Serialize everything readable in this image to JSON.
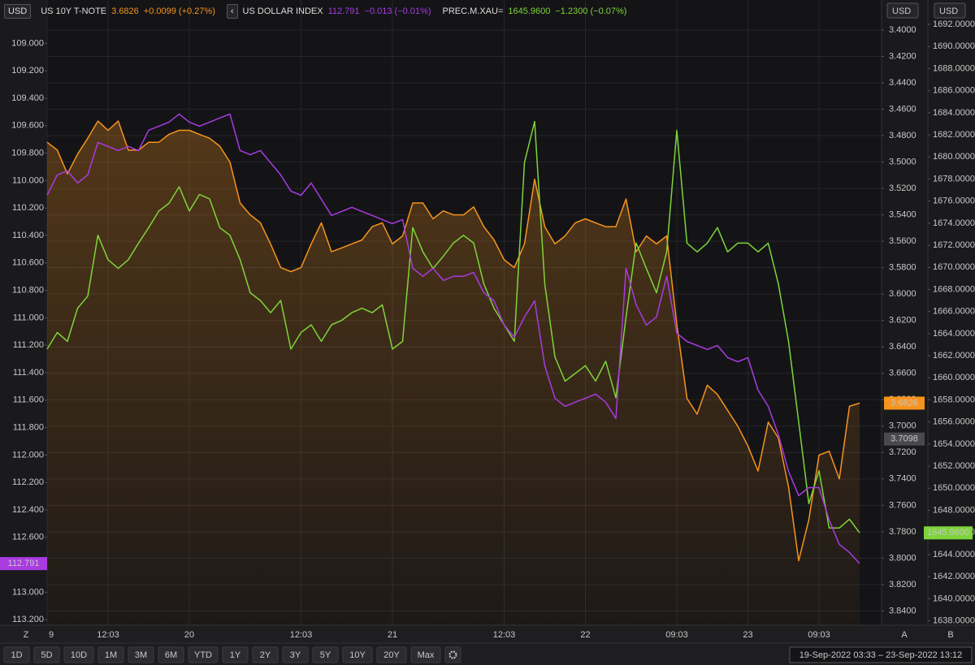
{
  "chart_data": {
    "type": "line",
    "x_labels_note": null,
    "categories": [
      "9",
      null,
      null,
      null,
      null,
      null,
      "12:03",
      null,
      null,
      null,
      null,
      null,
      null,
      null,
      "20",
      null,
      null,
      null,
      null,
      null,
      null,
      null,
      null,
      null,
      null,
      "12:03",
      null,
      null,
      null,
      null,
      null,
      null,
      null,
      null,
      "21",
      null,
      null,
      null,
      null,
      null,
      null,
      null,
      null,
      null,
      null,
      "12:03",
      null,
      null,
      null,
      null,
      null,
      null,
      null,
      "22",
      null,
      null,
      null,
      null,
      null,
      null,
      null,
      null,
      "09:03",
      null,
      null,
      null,
      null,
      null,
      null,
      "23",
      null,
      null,
      null,
      null,
      null,
      null,
      "09:03",
      null,
      null,
      null,
      null
    ],
    "ylim": [
      108.85,
      113.24
    ],
    "y_inverted": true,
    "y_currency": "USD",
    "yticks": [
      {
        "value": 109,
        "label": "109.000"
      },
      {
        "value": 109.2,
        "label": "109.200"
      },
      {
        "value": 109.4,
        "label": "109.400"
      },
      {
        "value": 109.6,
        "label": "109.600"
      },
      {
        "value": 109.8,
        "label": "109.800"
      },
      {
        "value": 110,
        "label": "110.000"
      },
      {
        "value": 110.2,
        "label": "110.200"
      },
      {
        "value": 110.4,
        "label": "110.400"
      },
      {
        "value": 110.6,
        "label": "110.600"
      },
      {
        "value": 110.8,
        "label": "110.800"
      },
      {
        "value": 111,
        "label": "111.000"
      },
      {
        "value": 111.2,
        "label": "111.200"
      },
      {
        "value": 111.4,
        "label": "111.400"
      },
      {
        "value": 111.6,
        "label": "111.600"
      },
      {
        "value": 111.8,
        "label": "111.800"
      },
      {
        "value": 112,
        "label": "112.000"
      },
      {
        "value": 112.2,
        "label": "112.200"
      },
      {
        "value": 112.4,
        "label": "112.400"
      },
      {
        "value": 112.6,
        "label": "112.600"
      },
      {
        "value": 112.8,
        "label": "112.800"
      },
      {
        "value": 113,
        "label": "113.000"
      },
      {
        "value": 113.2,
        "label": "113.200"
      }
    ],
    "y2lim": [
      3.3945,
      3.8508
    ],
    "y2_inverted": true,
    "y2_currency": "USD",
    "y2ticks": [
      {
        "value": 3.4,
        "label": "3.4000"
      },
      {
        "value": 3.42,
        "label": "3.4200"
      },
      {
        "value": 3.44,
        "label": "3.4400"
      },
      {
        "value": 3.46,
        "label": "3.4600"
      },
      {
        "value": 3.48,
        "label": "3.4800"
      },
      {
        "value": 3.5,
        "label": "3.5000"
      },
      {
        "value": 3.52,
        "label": "3.5200"
      },
      {
        "value": 3.54,
        "label": "3.5400"
      },
      {
        "value": 3.56,
        "label": "3.5600"
      },
      {
        "value": 3.58,
        "label": "3.5800"
      },
      {
        "value": 3.6,
        "label": "3.6000"
      },
      {
        "value": 3.62,
        "label": "3.6200"
      },
      {
        "value": 3.64,
        "label": "3.6400"
      },
      {
        "value": 3.66,
        "label": "3.6600"
      },
      {
        "value": 3.68,
        "label": "3.6800"
      },
      {
        "value": 3.7,
        "label": "3.7000"
      },
      {
        "value": 3.72,
        "label": "3.7200"
      },
      {
        "value": 3.74,
        "label": "3.7400"
      },
      {
        "value": 3.76,
        "label": "3.7600"
      },
      {
        "value": 3.78,
        "label": "3.7800"
      },
      {
        "value": 3.8,
        "label": "3.8000"
      },
      {
        "value": 3.82,
        "label": "3.8200"
      },
      {
        "value": 3.84,
        "label": "3.8400"
      }
    ],
    "y3lim": [
      1637.6,
      1692.15
    ],
    "y3_currency": "USD",
    "y3ticks": [
      {
        "value": 1638,
        "label": "1638.0000"
      },
      {
        "value": 1640,
        "label": "1640.0000"
      },
      {
        "value": 1642,
        "label": "1642.0000"
      },
      {
        "value": 1644,
        "label": "1644.0000"
      },
      {
        "value": 1646,
        "label": "1646.0000"
      },
      {
        "value": 1648,
        "label": "1648.0000"
      },
      {
        "value": 1650,
        "label": "1650.0000"
      },
      {
        "value": 1652,
        "label": "1652.0000"
      },
      {
        "value": 1654,
        "label": "1654.0000"
      },
      {
        "value": 1656,
        "label": "1656.0000"
      },
      {
        "value": 1658,
        "label": "1658.0000"
      },
      {
        "value": 1660,
        "label": "1660.0000"
      },
      {
        "value": 1662,
        "label": "1662.0000"
      },
      {
        "value": 1664,
        "label": "1664.0000"
      },
      {
        "value": 1666,
        "label": "1666.0000"
      },
      {
        "value": 1668,
        "label": "1668.0000"
      },
      {
        "value": 1670,
        "label": "1670.0000"
      },
      {
        "value": 1672,
        "label": "1672.0000"
      },
      {
        "value": 1674,
        "label": "1674.0000"
      },
      {
        "value": 1676,
        "label": "1676.0000"
      },
      {
        "value": 1678,
        "label": "1678.0000"
      },
      {
        "value": 1680,
        "label": "1680.0000"
      },
      {
        "value": 1682,
        "label": "1682.0000"
      },
      {
        "value": 1684,
        "label": "1684.0000"
      },
      {
        "value": 1686,
        "label": "1686.0000"
      },
      {
        "value": 1688,
        "label": "1688.0000"
      },
      {
        "value": 1690,
        "label": "1690.0000"
      },
      {
        "value": 1692,
        "label": "1692.0000"
      }
    ],
    "grid": true,
    "legend_currency": "USD",
    "series": [
      {
        "name": "US 10Y T-NOTE",
        "color": "#f7941d",
        "axis": "y2",
        "area": true,
        "price_label": "3.6826",
        "change_label": "+0.0099 (+0.27%)",
        "values": [
          3.485,
          3.491,
          3.509,
          3.494,
          3.482,
          3.469,
          3.476,
          3.469,
          3.491,
          3.491,
          3.485,
          3.485,
          3.479,
          3.476,
          3.476,
          3.479,
          3.482,
          3.488,
          3.5,
          3.531,
          3.54,
          3.546,
          3.562,
          3.58,
          3.583,
          3.58,
          3.562,
          3.546,
          3.568,
          3.565,
          3.562,
          3.559,
          3.549,
          3.546,
          3.562,
          3.556,
          3.531,
          3.531,
          3.543,
          3.537,
          3.54,
          3.54,
          3.534,
          3.549,
          3.559,
          3.574,
          3.58,
          3.562,
          3.513,
          3.549,
          3.562,
          3.556,
          3.546,
          3.543,
          3.546,
          3.549,
          3.549,
          3.528,
          3.568,
          3.556,
          3.562,
          3.556,
          3.623,
          3.679,
          3.691,
          3.669,
          3.676,
          3.688,
          3.7,
          3.715,
          3.734,
          3.697,
          3.709,
          3.746,
          3.802,
          3.771,
          3.722,
          3.719,
          3.74,
          3.685,
          3.6826
        ]
      },
      {
        "name": "US DOLLAR INDEX",
        "color": "#a93be0",
        "axis": "y",
        "price_label": "112.791",
        "change_label": "−0.013 (−0.01%)",
        "values": [
          110.107,
          109.959,
          109.929,
          110.018,
          109.959,
          109.722,
          109.751,
          109.781,
          109.751,
          109.781,
          109.633,
          109.604,
          109.574,
          109.515,
          109.574,
          109.604,
          109.574,
          109.544,
          109.515,
          109.781,
          109.811,
          109.781,
          109.87,
          109.959,
          110.077,
          110.107,
          110.018,
          110.136,
          110.254,
          110.225,
          110.195,
          110.225,
          110.254,
          110.284,
          110.314,
          110.284,
          110.639,
          110.698,
          110.639,
          110.728,
          110.698,
          110.698,
          110.669,
          110.817,
          110.876,
          111.053,
          111.142,
          110.994,
          110.876,
          111.349,
          111.586,
          111.645,
          111.615,
          111.586,
          111.556,
          111.615,
          111.734,
          110.639,
          110.905,
          111.053,
          110.994,
          110.698,
          111.112,
          111.172,
          111.201,
          111.231,
          111.201,
          111.29,
          111.32,
          111.29,
          111.527,
          111.645,
          111.852,
          112.118,
          112.296,
          112.237,
          112.237,
          112.473,
          112.651,
          112.71,
          112.791
        ]
      },
      {
        "name": "PREC.M.XAU=",
        "color": "#7ed43a",
        "axis": "y3",
        "price_label": "1645.9600",
        "change_label": "−1.2300 (−0.07%)",
        "values": [
          1662.6,
          1664.1,
          1663.3,
          1666.3,
          1667.4,
          1672.9,
          1670.7,
          1669.9,
          1670.7,
          1672.2,
          1673.6,
          1675.1,
          1675.8,
          1677.3,
          1675.1,
          1676.6,
          1676.2,
          1673.6,
          1672.9,
          1670.7,
          1667.7,
          1667.0,
          1665.9,
          1667.0,
          1662.6,
          1664.1,
          1664.8,
          1663.3,
          1664.8,
          1665.2,
          1665.9,
          1666.3,
          1665.9,
          1666.6,
          1662.6,
          1663.3,
          1673.6,
          1671.4,
          1669.9,
          1671.0,
          1672.2,
          1672.9,
          1672.2,
          1668.5,
          1666.3,
          1664.8,
          1663.3,
          1679.5,
          1683.2,
          1668.5,
          1661.9,
          1659.7,
          1660.4,
          1661.1,
          1659.7,
          1661.5,
          1658.2,
          1665.5,
          1672.2,
          1669.9,
          1667.7,
          1671.4,
          1682.4,
          1672.2,
          1671.4,
          1672.2,
          1673.6,
          1671.4,
          1672.2,
          1672.2,
          1671.4,
          1672.2,
          1668.5,
          1663.3,
          1656.0,
          1648.6,
          1651.6,
          1646.4,
          1646.4,
          1647.2,
          1645.96
        ]
      }
    ],
    "reference_tag": {
      "value": 3.7098,
      "label": "3.7098"
    },
    "axis_letters": [
      "Z",
      "A",
      "B"
    ]
  },
  "toolbar": {
    "ranges": [
      "1D",
      "5D",
      "10D",
      "1M",
      "3M",
      "6M",
      "YTD",
      "1Y",
      "2Y",
      "3Y",
      "5Y",
      "10Y",
      "20Y",
      "Max"
    ],
    "active": 1,
    "date_range": "19-Sep-2022 03:33 – 23-Sep-2022 13:12"
  }
}
